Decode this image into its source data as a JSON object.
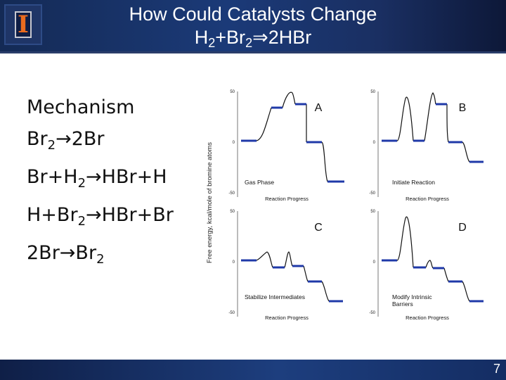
{
  "slide": {
    "title_line1": "How Could Catalysts Change",
    "title_line2": {
      "p1": "H",
      "s1": "2",
      "p2": "+Br",
      "s2": "2",
      "p3": "⇒2HBr"
    },
    "page_number": "7"
  },
  "mechanism": [
    [
      {
        "t": "Mechanism"
      }
    ],
    [
      {
        "t": "Br"
      },
      {
        "s": "2"
      },
      {
        "t": "→2Br"
      }
    ],
    [
      {
        "t": "Br+H"
      },
      {
        "s": "2"
      },
      {
        "t": "→HBr+H"
      }
    ],
    [
      {
        "t": "H+Br"
      },
      {
        "s": "2"
      },
      {
        "t": "→HBr+Br"
      }
    ],
    [
      {
        "t": "2Br→Br"
      },
      {
        "s": "2"
      }
    ]
  ],
  "figure": {
    "y_axis_label": "Free energy, kcal/mole of bromine atoms",
    "panels": [
      {
        "letter": "A",
        "caption": [
          "Gas Phase"
        ],
        "x_axis_label": "Reaction Progress",
        "tick_top": "50",
        "tick_mid": "0",
        "tick_bottom": "-50"
      },
      {
        "letter": "B",
        "caption": [
          "Initiate Reaction"
        ],
        "x_axis_label": "Reaction Progress",
        "tick_top": "50",
        "tick_mid": "0",
        "tick_bottom": "-50"
      },
      {
        "letter": "C",
        "caption": [
          "Stabilize Intermediates"
        ],
        "x_axis_label": "Reaction Progress",
        "tick_top": "50",
        "tick_mid": "0",
        "tick_bottom": "-50"
      },
      {
        "letter": "D",
        "caption": [
          "Modify Intrinsic",
          "Barriers"
        ],
        "x_axis_label": "Reaction Progress",
        "tick_top": "50",
        "tick_mid": "0",
        "tick_bottom": "-50"
      }
    ]
  },
  "colors": {
    "level_line": "#1f39a8",
    "curve": "#111111",
    "header_bg": "#1b3a78"
  }
}
